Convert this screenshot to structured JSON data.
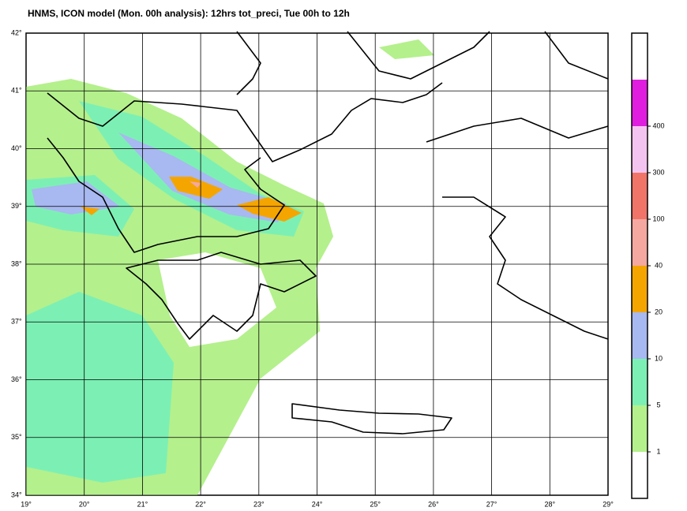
{
  "title": "HNMS, ICON model (Mon. 00h analysis): 12hrs tot_preci, Tue 00h to 12h",
  "map": {
    "xlim": [
      19,
      29
    ],
    "ylim": [
      34,
      42
    ],
    "xticks": [
      {
        "value": 19,
        "label": "19°"
      },
      {
        "value": 20,
        "label": "20°"
      },
      {
        "value": 21,
        "label": "21°"
      },
      {
        "value": 22,
        "label": "22°"
      },
      {
        "value": 23,
        "label": "23°"
      },
      {
        "value": 24,
        "label": "24°"
      },
      {
        "value": 25,
        "label": "25°"
      },
      {
        "value": 26,
        "label": "26°"
      },
      {
        "value": 27,
        "label": "27°"
      },
      {
        "value": 28,
        "label": "28°"
      },
      {
        "value": 29,
        "label": "29°"
      }
    ],
    "yticks": [
      {
        "value": 34,
        "label": "34°"
      },
      {
        "value": 35,
        "label": "35°"
      },
      {
        "value": 36,
        "label": "36°"
      },
      {
        "value": 37,
        "label": "37°"
      },
      {
        "value": 38,
        "label": "38°"
      },
      {
        "value": 39,
        "label": "39°"
      },
      {
        "value": 40,
        "label": "40°"
      },
      {
        "value": 41,
        "label": "41°"
      },
      {
        "value": 42,
        "label": "42°"
      }
    ]
  },
  "legend": {
    "levels": [
      1,
      5,
      10,
      20,
      40,
      100,
      300,
      400
    ],
    "colors": [
      "#ffffff",
      "#b4f08c",
      "#7cf0b4",
      "#a8b8f0",
      "#f5a500",
      "#f4a8a0",
      "#f07468",
      "#f4c4f0",
      "#e01ee0",
      "#ffffff"
    ]
  }
}
